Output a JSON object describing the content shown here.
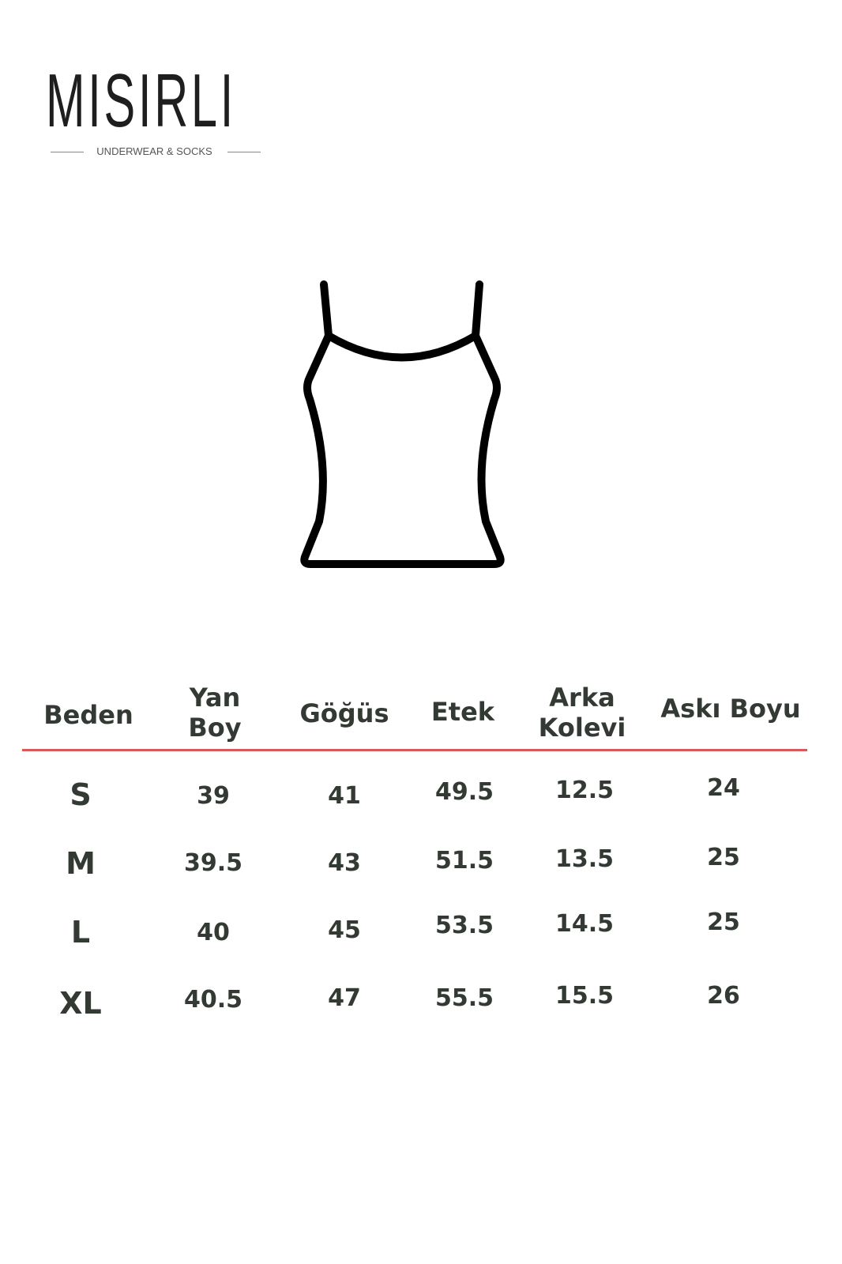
{
  "brand": {
    "name": "MISIRLI",
    "tagline": "UNDERWEAR & SOCKS"
  },
  "garment_icon": "tank-top-outline-icon",
  "colors": {
    "text": "#333a33",
    "rule": "#d9585a"
  },
  "table": {
    "headers": [
      "Beden",
      "Yan Boy",
      "Göğüs",
      "Etek",
      "Arka Kolevi",
      "Askı Boyu"
    ],
    "header_lines": [
      [
        "Beden"
      ],
      [
        "Yan",
        "Boy"
      ],
      [
        "Göğüs"
      ],
      [
        "Etek"
      ],
      [
        "Arka",
        "Kolevi"
      ],
      [
        "Askı Boyu"
      ]
    ],
    "rows": [
      [
        "S",
        "39",
        "41",
        "49.5",
        "12.5",
        "24"
      ],
      [
        "M",
        "39.5",
        "43",
        "51.5",
        "13.5",
        "25"
      ],
      [
        "L",
        "40",
        "45",
        "53.5",
        "14.5",
        "25"
      ],
      [
        "XL",
        "40.5",
        "47",
        "55.5",
        "15.5",
        "26"
      ]
    ]
  }
}
